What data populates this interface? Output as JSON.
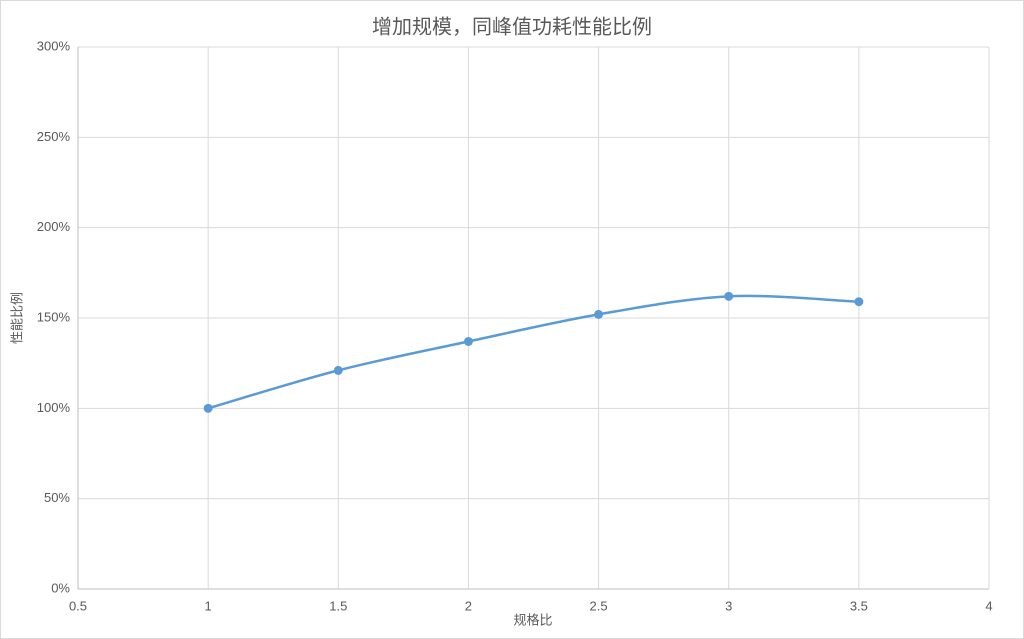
{
  "chart_data": {
    "type": "line",
    "title": "增加规模，同峰值功耗性能比例",
    "x_label": "规格比",
    "y_label": "性能比例",
    "series": [
      {
        "name": "性能比例",
        "color": "#5b9bd5",
        "x": [
          1,
          1.5,
          2,
          2.5,
          3,
          3.5
        ],
        "values": [
          100,
          121,
          137,
          152,
          162,
          159
        ]
      }
    ],
    "xlim": [
      0.5,
      4
    ],
    "xticks": [
      0.5,
      1,
      1.5,
      2,
      2.5,
      3,
      3.5,
      4
    ],
    "ylim": [
      0,
      300
    ],
    "yticks": [
      {
        "value": 0,
        "label": "0%"
      },
      {
        "value": 50,
        "label": "50%"
      },
      {
        "value": 100,
        "label": "100%"
      },
      {
        "value": 150,
        "label": "150%"
      },
      {
        "value": 200,
        "label": "200%"
      },
      {
        "value": 250,
        "label": "250%"
      },
      {
        "value": 300,
        "label": "300%"
      }
    ],
    "grid": true,
    "smooth": true
  }
}
